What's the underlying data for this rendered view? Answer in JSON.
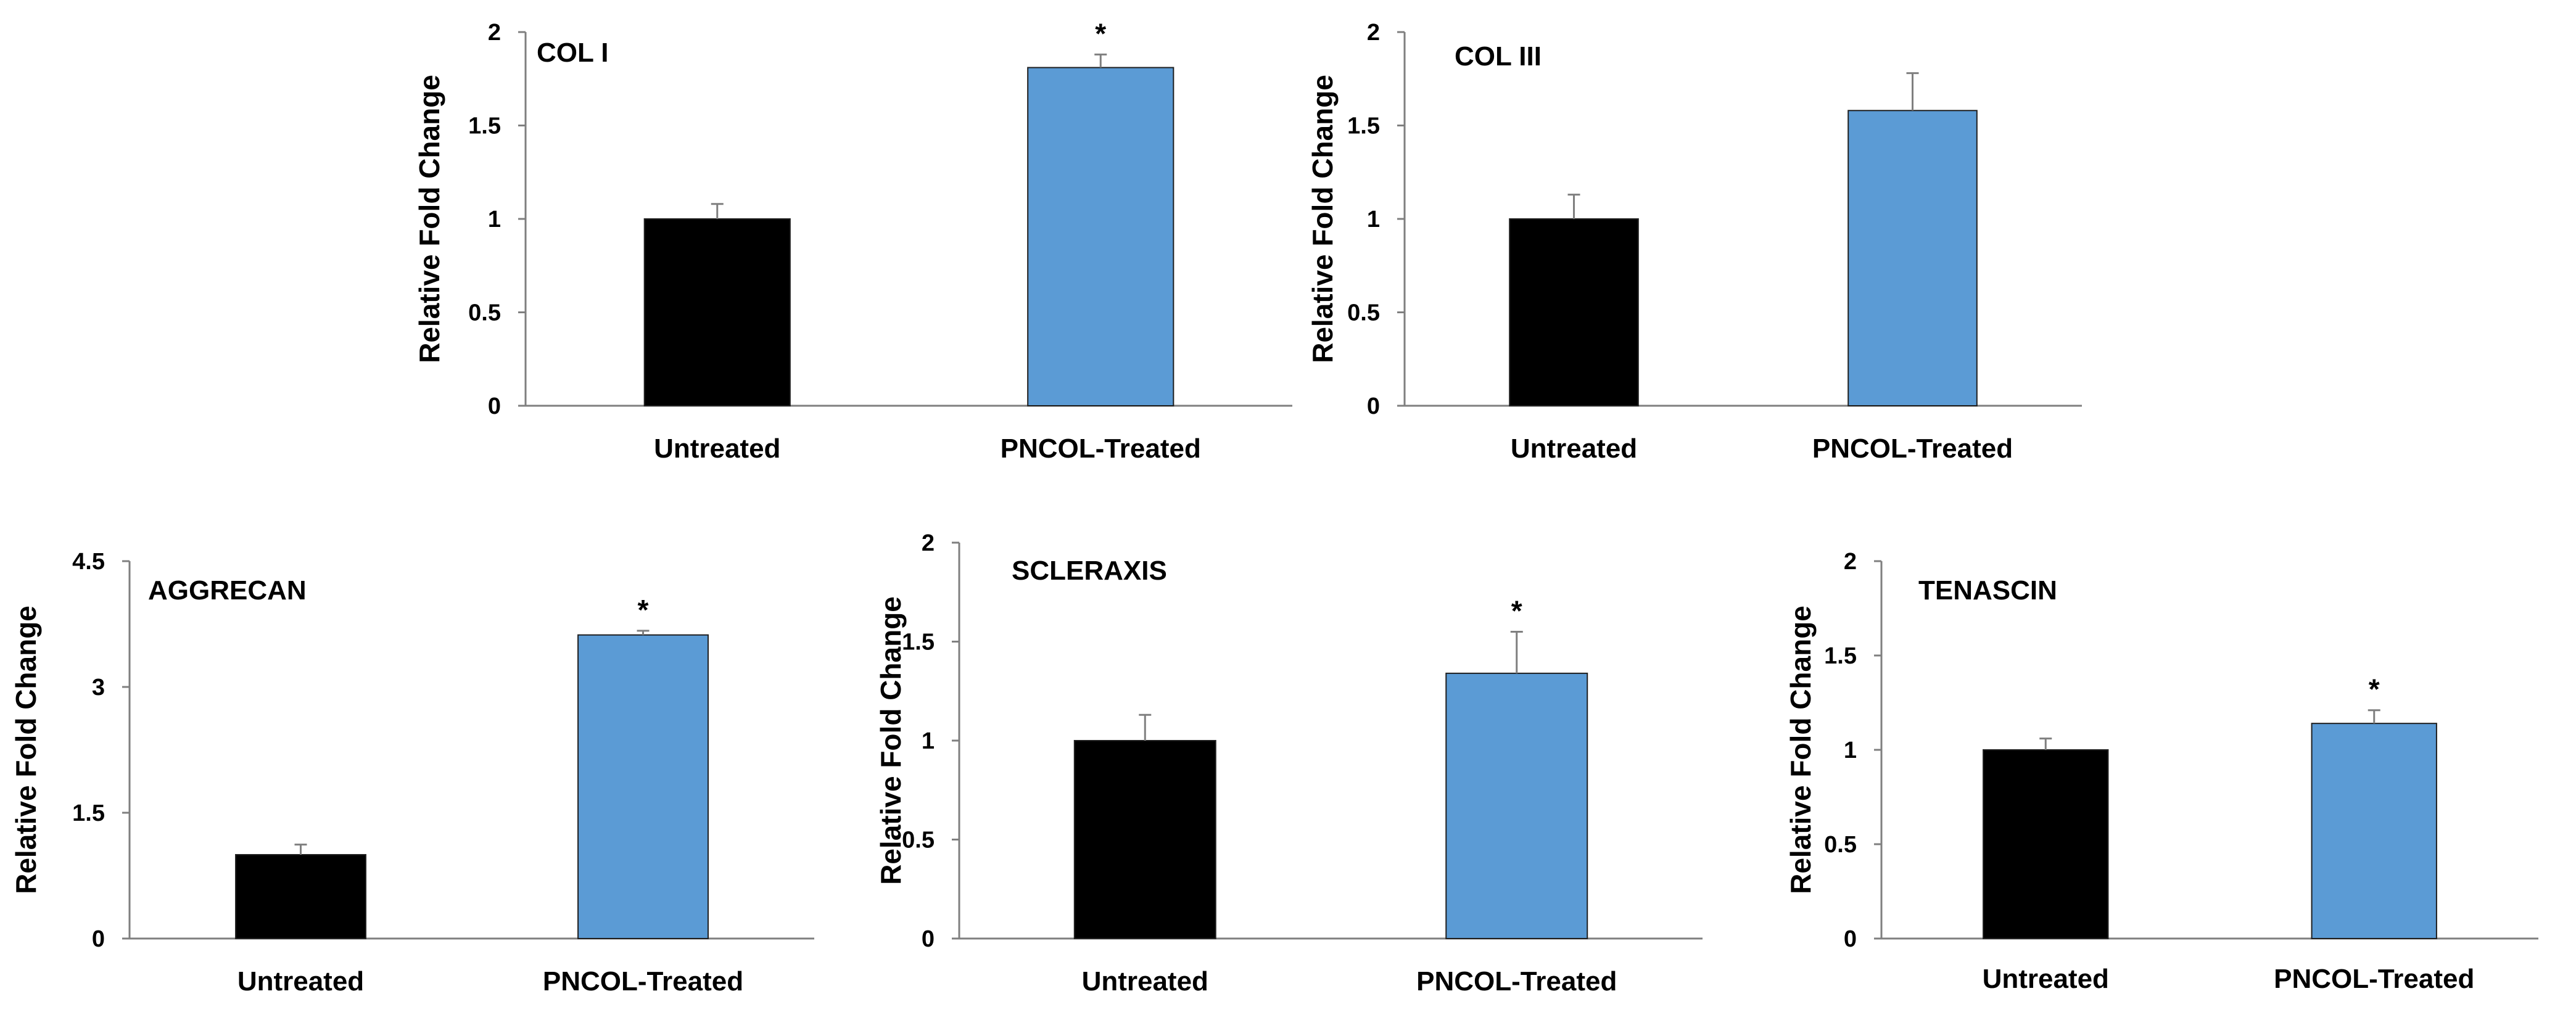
{
  "chart_data": [
    {
      "type": "bar",
      "title": "COL I",
      "ylabel": "Relative Fold Change",
      "categories": [
        "Untreated",
        "PNCOL-Treated"
      ],
      "values": [
        1.0,
        1.81
      ],
      "errors": [
        0.08,
        0.07
      ],
      "significance": [
        "",
        "*"
      ],
      "ylim": [
        0,
        2
      ],
      "yticks": [
        0,
        0.5,
        1,
        1.5,
        2
      ],
      "ytick_labels": [
        "0",
        "0.5",
        "1",
        "1.5",
        "2"
      ],
      "colors": [
        "#000000",
        "#5b9bd5"
      ],
      "grid": false,
      "legend": "none"
    },
    {
      "type": "bar",
      "title": "COL III",
      "ylabel": "Relative Fold Change",
      "categories": [
        "Untreated",
        "PNCOL-Treated"
      ],
      "values": [
        1.0,
        1.58
      ],
      "errors": [
        0.13,
        0.2
      ],
      "significance": [
        "",
        ""
      ],
      "ylim": [
        0,
        2
      ],
      "yticks": [
        0,
        0.5,
        1,
        1.5,
        2
      ],
      "ytick_labels": [
        "0",
        "0.5",
        "1",
        "1.5",
        "2"
      ],
      "colors": [
        "#000000",
        "#5b9bd5"
      ],
      "grid": false,
      "legend": "none"
    },
    {
      "type": "bar",
      "title": "AGGRECAN",
      "ylabel": "Relative Fold Change",
      "categories": [
        "Untreated",
        "PNCOL-Treated"
      ],
      "values": [
        1.0,
        3.62
      ],
      "errors": [
        0.12,
        0.05
      ],
      "significance": [
        "",
        "*"
      ],
      "ylim": [
        0,
        4.5
      ],
      "yticks": [
        0,
        1.5,
        3,
        4.5
      ],
      "ytick_labels": [
        "0",
        "1.5",
        "3",
        "4.5"
      ],
      "colors": [
        "#000000",
        "#5b9bd5"
      ],
      "grid": false,
      "legend": "none"
    },
    {
      "type": "bar",
      "title": "SCLERAXIS",
      "ylabel": "Relative Fold Change",
      "categories": [
        "Untreated",
        "PNCOL-Treated"
      ],
      "values": [
        1.0,
        1.34
      ],
      "errors": [
        0.13,
        0.21
      ],
      "significance": [
        "",
        "*"
      ],
      "ylim": [
        0,
        2
      ],
      "yticks": [
        0,
        0.5,
        1,
        1.5,
        2
      ],
      "ytick_labels": [
        "0",
        "0.5",
        "1",
        "1.5",
        "2"
      ],
      "colors": [
        "#000000",
        "#5b9bd5"
      ],
      "grid": false,
      "legend": "none"
    },
    {
      "type": "bar",
      "title": "TENASCIN",
      "ylabel": "Relative Fold Change",
      "categories": [
        "Untreated",
        "PNCOL-Treated"
      ],
      "values": [
        1.0,
        1.14
      ],
      "errors": [
        0.06,
        0.07
      ],
      "significance": [
        "",
        "*"
      ],
      "ylim": [
        0,
        2
      ],
      "yticks": [
        0,
        0.5,
        1,
        1.5,
        2
      ],
      "ytick_labels": [
        "0",
        "0.5",
        "1",
        "1.5",
        "2"
      ],
      "colors": [
        "#000000",
        "#5b9bd5"
      ],
      "grid": false,
      "legend": "none"
    }
  ]
}
